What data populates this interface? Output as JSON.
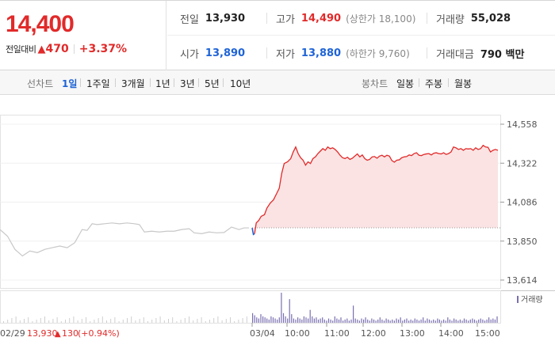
{
  "summary": {
    "price": "14,400",
    "change_label": "전일대비",
    "change_arrow": "▲",
    "change_amount": "470",
    "change_pct": "+3.37%",
    "prev_close_label": "전일",
    "prev_close": "13,930",
    "high_label": "고가",
    "high": "14,490",
    "upper_limit": "(상한가 18,100)",
    "volume_label": "거래량",
    "volume": "55,028",
    "open_label": "시가",
    "open": "13,890",
    "low_label": "저가",
    "low": "13,880",
    "lower_limit": "(하한가 9,760)",
    "turnover_label": "거래대금",
    "turnover": "790 백만"
  },
  "tabs": {
    "line_label": "선차트",
    "line_periods": [
      "1일",
      "1주일",
      "3개월",
      "1년",
      "3년",
      "5년",
      "10년"
    ],
    "active_period": "1일",
    "candle_label": "봉차트",
    "candle_periods": [
      "일봉",
      "주봉",
      "월봉"
    ]
  },
  "colors": {
    "up": "#e12a2a",
    "down": "#1e63d6",
    "prev_day_line": "#c8c8c8",
    "area_fill": "#fbe3e3",
    "volume_bar": "#7a6fb0"
  },
  "chart_data": {
    "type": "line",
    "y_ticks": [
      "14,558",
      "14,322",
      "14,086",
      "13,850",
      "13,614"
    ],
    "ylim": [
      13614,
      14558
    ],
    "baseline": 13930,
    "x_ticks": [
      "03/04",
      "10:00",
      "11:00",
      "12:00",
      "13:00",
      "14:00",
      "15:00"
    ],
    "prev_day": {
      "date": "02/29",
      "close": "13,930",
      "change_arrow": "▲",
      "change": "130",
      "change_pct": "(+0.94%)",
      "series": [
        [
          0,
          13920
        ],
        [
          0.6,
          13880
        ],
        [
          1.2,
          13800
        ],
        [
          1.8,
          13760
        ],
        [
          2.4,
          13790
        ],
        [
          3.0,
          13780
        ],
        [
          3.6,
          13800
        ],
        [
          4.2,
          13810
        ],
        [
          4.8,
          13820
        ],
        [
          5.4,
          13810
        ],
        [
          6.0,
          13840
        ],
        [
          6.6,
          13920
        ],
        [
          7.0,
          13915
        ],
        [
          7.4,
          13955
        ],
        [
          7.8,
          13950
        ],
        [
          8.4,
          13955
        ],
        [
          9.0,
          13960
        ],
        [
          9.6,
          13955
        ],
        [
          10.2,
          13960
        ],
        [
          10.8,
          13955
        ],
        [
          11.2,
          13950
        ],
        [
          11.6,
          13905
        ],
        [
          12.2,
          13910
        ],
        [
          12.8,
          13905
        ],
        [
          13.4,
          13910
        ],
        [
          14.0,
          13910
        ],
        [
          14.6,
          13920
        ],
        [
          15.2,
          13925
        ],
        [
          15.6,
          13900
        ],
        [
          16.2,
          13895
        ],
        [
          16.8,
          13905
        ],
        [
          17.4,
          13900
        ],
        [
          18.0,
          13902
        ],
        [
          18.6,
          13935
        ],
        [
          19.2,
          13920
        ],
        [
          19.6,
          13930
        ],
        [
          20.0,
          13930
        ]
      ]
    },
    "today": {
      "series": [
        [
          0,
          13930
        ],
        [
          0.15,
          13890
        ],
        [
          0.3,
          13895
        ],
        [
          0.5,
          13960
        ],
        [
          0.8,
          13975
        ],
        [
          1.1,
          14000
        ],
        [
          1.5,
          14010
        ],
        [
          1.8,
          14050
        ],
        [
          2.2,
          14080
        ],
        [
          2.6,
          14100
        ],
        [
          3.0,
          14140
        ],
        [
          3.3,
          14170
        ],
        [
          3.6,
          14260
        ],
        [
          3.9,
          14320
        ],
        [
          4.3,
          14330
        ],
        [
          4.7,
          14350
        ],
        [
          5.0,
          14390
        ],
        [
          5.3,
          14420
        ],
        [
          5.6,
          14380
        ],
        [
          5.9,
          14355
        ],
        [
          6.2,
          14340
        ],
        [
          6.5,
          14310
        ],
        [
          6.8,
          14330
        ],
        [
          7.1,
          14320
        ],
        [
          7.4,
          14350
        ],
        [
          7.7,
          14360
        ],
        [
          8.0,
          14380
        ],
        [
          8.3,
          14395
        ],
        [
          8.6,
          14410
        ],
        [
          8.9,
          14400
        ],
        [
          9.2,
          14420
        ],
        [
          9.5,
          14410
        ],
        [
          9.8,
          14415
        ],
        [
          10.1,
          14405
        ],
        [
          10.4,
          14390
        ],
        [
          10.7,
          14370
        ],
        [
          11.0,
          14355
        ],
        [
          11.3,
          14350
        ],
        [
          11.6,
          14358
        ],
        [
          11.9,
          14345
        ],
        [
          12.2,
          14352
        ],
        [
          12.5,
          14365
        ],
        [
          12.8,
          14378
        ],
        [
          13.1,
          14360
        ],
        [
          13.4,
          14372
        ],
        [
          13.7,
          14350
        ],
        [
          14.0,
          14340
        ],
        [
          14.3,
          14345
        ],
        [
          14.6,
          14360
        ],
        [
          14.9,
          14362
        ],
        [
          15.2,
          14352
        ],
        [
          15.5,
          14365
        ],
        [
          15.8,
          14370
        ],
        [
          16.1,
          14360
        ],
        [
          16.4,
          14370
        ],
        [
          16.7,
          14365
        ],
        [
          17.0,
          14338
        ],
        [
          17.3,
          14328
        ],
        [
          17.6,
          14340
        ],
        [
          17.9,
          14342
        ],
        [
          18.2,
          14355
        ],
        [
          18.5,
          14360
        ],
        [
          18.8,
          14362
        ],
        [
          19.1,
          14372
        ],
        [
          19.4,
          14368
        ],
        [
          19.7,
          14380
        ],
        [
          20.0,
          14385
        ],
        [
          20.3,
          14370
        ],
        [
          20.6,
          14368
        ],
        [
          20.9,
          14375
        ],
        [
          21.2,
          14378
        ],
        [
          21.5,
          14380
        ],
        [
          21.8,
          14372
        ],
        [
          22.1,
          14382
        ],
        [
          22.4,
          14385
        ],
        [
          22.7,
          14380
        ],
        [
          23.0,
          14378
        ],
        [
          23.3,
          14385
        ],
        [
          23.6,
          14375
        ],
        [
          23.9,
          14380
        ],
        [
          24.2,
          14390
        ],
        [
          24.5,
          14420
        ],
        [
          24.8,
          14415
        ],
        [
          25.1,
          14405
        ],
        [
          25.4,
          14410
        ],
        [
          25.7,
          14400
        ],
        [
          26.0,
          14410
        ],
        [
          26.3,
          14408
        ],
        [
          26.6,
          14410
        ],
        [
          26.9,
          14400
        ],
        [
          27.2,
          14415
        ],
        [
          27.5,
          14405
        ],
        [
          27.8,
          14410
        ],
        [
          28.1,
          14430
        ],
        [
          28.4,
          14420
        ],
        [
          28.7,
          14418
        ],
        [
          29.0,
          14390
        ],
        [
          29.3,
          14400
        ],
        [
          29.6,
          14405
        ],
        [
          29.9,
          14400
        ]
      ],
      "volume": [
        9,
        7,
        5,
        4,
        8,
        6,
        5,
        4,
        3,
        6,
        5,
        4,
        3,
        5,
        28,
        9,
        6,
        4,
        22,
        8,
        4,
        3,
        5,
        4,
        3,
        6,
        5,
        4,
        12,
        6,
        4,
        5,
        3,
        4,
        5,
        3,
        2,
        4,
        3,
        2,
        6,
        4,
        3,
        5,
        2,
        3,
        4,
        2,
        3,
        16,
        4,
        3,
        2,
        4,
        3,
        5,
        3,
        2,
        4,
        3,
        2,
        3,
        5,
        3,
        2,
        4,
        3,
        2,
        3,
        2,
        4,
        3,
        5,
        2,
        3,
        4,
        2,
        3,
        2,
        4,
        3,
        2,
        3,
        5,
        2,
        4,
        3,
        2,
        3,
        2,
        4,
        3,
        2,
        3,
        2,
        5,
        3,
        2,
        4,
        3,
        2,
        3,
        2,
        4,
        3,
        2,
        3,
        4,
        3,
        2,
        3,
        4,
        3,
        2,
        3,
        5,
        3,
        4,
        3,
        6
      ]
    },
    "volume_legend": "거래량"
  }
}
